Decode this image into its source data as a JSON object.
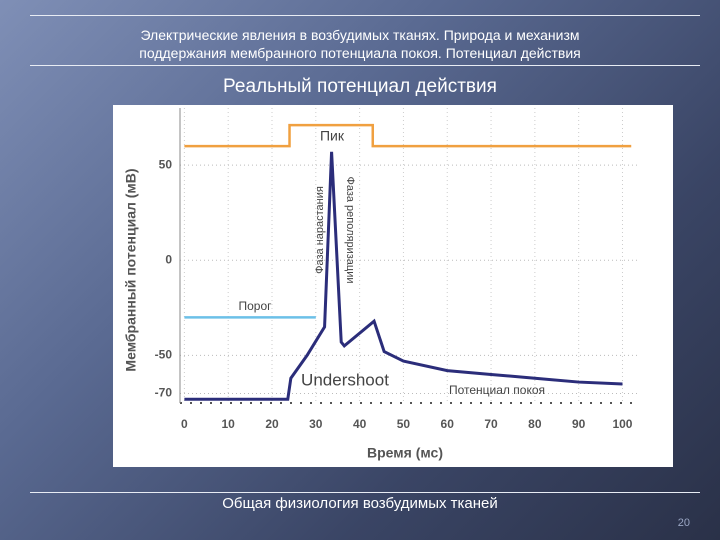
{
  "slide": {
    "title_line1": "Электрические явления в возбудимых тканях. Природа и механизм",
    "title_line2": "поддержания мембранного потенциала покоя. Потенциал действия",
    "subtitle": "Реальный потенциал действия",
    "footer": "Общая физиология возбудимых тканей",
    "page_number": "20"
  },
  "chart_data": {
    "type": "line",
    "x_label": "Время (мс)",
    "y_label": "Мембранный потенциал (мВ)",
    "xlim": [
      -1,
      104
    ],
    "ylim": [
      -75,
      80
    ],
    "xticks": [
      0,
      10,
      20,
      30,
      40,
      50,
      60,
      70,
      80,
      90,
      100
    ],
    "yticks": [
      50,
      0,
      -50,
      -70
    ],
    "grid": true,
    "series": [
      {
        "color": "#f0a040",
        "x": [
          0,
          24,
          24,
          43,
          43,
          102
        ],
        "values": [
          60,
          60,
          71,
          71,
          60,
          60
        ]
      },
      {
        "color": "#6cc0e8",
        "x": [
          0,
          30
        ],
        "values": [
          -30,
          -30
        ]
      },
      {
        "color": "#2b2d7a",
        "x": [
          0,
          23.6,
          24.3,
          28,
          32,
          33.6,
          35.8,
          36.5,
          43.3,
          45.6,
          50,
          60,
          70,
          80,
          90,
          100
        ],
        "values": [
          -73,
          -73,
          -62,
          -50,
          -35,
          57,
          -43,
          -45,
          -32,
          -48,
          -53,
          -58,
          -60,
          -62,
          -64,
          -65
        ]
      }
    ],
    "annotations": [
      "Пик",
      "Фаза нарастания",
      "Фаза реполяризации",
      "Порог",
      "Undershoot",
      "Потенциал покоя"
    ]
  }
}
